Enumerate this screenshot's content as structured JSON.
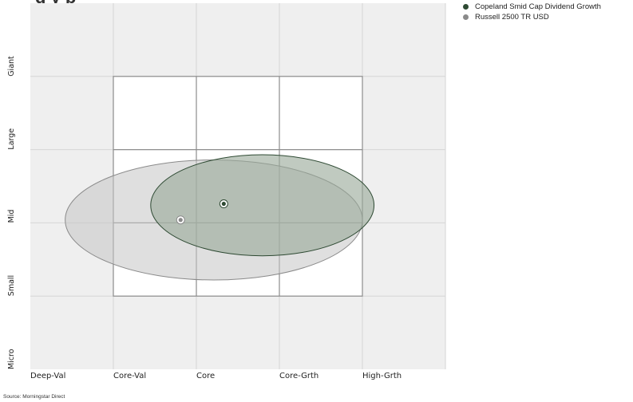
{
  "chart_data": {
    "type": "scatter",
    "title": "",
    "xlabel": "",
    "ylabel": "",
    "x_categories": [
      "Deep-Val",
      "Core-Val",
      "Core",
      "Core-Grth",
      "High-Grth"
    ],
    "y_categories": [
      "Micro",
      "Small",
      "Mid",
      "Large",
      "Giant"
    ],
    "style_box": {
      "x_range": [
        1,
        4
      ],
      "y_range": [
        1,
        4
      ]
    },
    "series": [
      {
        "name": "Copeland Smid Cap Dividend Growth",
        "color": "#2e4a33",
        "fill": "#9aaa99",
        "centroid": [
          2.33,
          2.26
        ],
        "ellipse": {
          "x_range": [
            1.45,
            4.14
          ],
          "y_range": [
            1.55,
            2.93
          ]
        }
      },
      {
        "name": "Russell 2500 TR USD",
        "color": "#8a8a8a",
        "fill": "#c4c4c4",
        "centroid": [
          1.81,
          2.04
        ],
        "ellipse": {
          "x_range": [
            0.42,
            4.0
          ],
          "y_range": [
            1.22,
            2.86
          ]
        }
      }
    ],
    "grid": true,
    "legend": "top-right"
  },
  "source": "Source: Morningstar Direct",
  "title_fragment": "g   y   p"
}
